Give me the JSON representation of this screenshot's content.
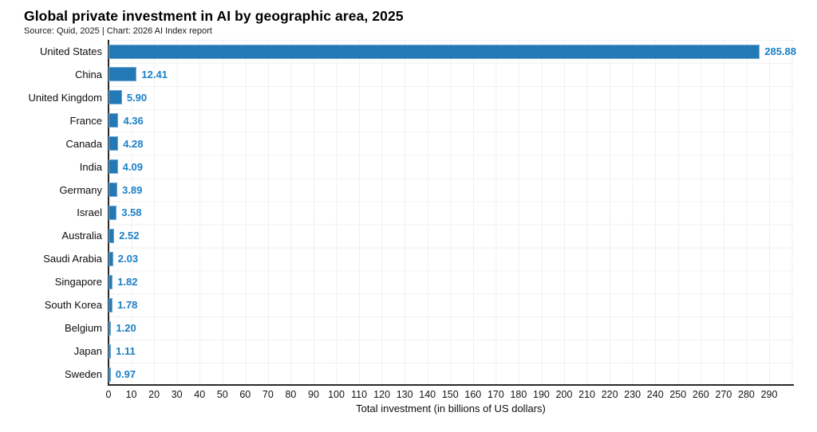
{
  "header": {
    "title": "Global private investment in AI by geographic area, 2025",
    "source_line": "Source: Quid, 2025 | Chart: 2026 AI Index report"
  },
  "chart_data": {
    "type": "bar",
    "orientation": "horizontal",
    "title": "Global private investment in AI by geographic area, 2025",
    "subtitle": "Source: Quid, 2025 | Chart: 2026 AI Index report",
    "categories": [
      "United States",
      "China",
      "United Kingdom",
      "France",
      "Canada",
      "India",
      "Germany",
      "Israel",
      "Australia",
      "Saudi Arabia",
      "Singapore",
      "South Korea",
      "Belgium",
      "Japan",
      "Sweden"
    ],
    "values": [
      285.88,
      12.41,
      5.9,
      4.36,
      4.28,
      4.09,
      3.89,
      3.58,
      2.52,
      2.03,
      1.82,
      1.78,
      1.2,
      1.11,
      0.97
    ],
    "value_labels": [
      "285.88",
      "12.41",
      "5.90",
      "4.36",
      "4.28",
      "4.09",
      "3.89",
      "3.58",
      "2.52",
      "2.03",
      "1.82",
      "1.78",
      "1.20",
      "1.11",
      "0.97"
    ],
    "xlabel": "Total investment (in billions of US dollars)",
    "xlim": [
      0,
      300
    ],
    "xticks": [
      0,
      10,
      20,
      30,
      40,
      50,
      60,
      70,
      80,
      90,
      100,
      110,
      120,
      130,
      140,
      150,
      160,
      170,
      180,
      190,
      200,
      210,
      220,
      230,
      240,
      250,
      260,
      270,
      280,
      290
    ],
    "grid": true,
    "legend": "none",
    "colors": {
      "bar_fill": "#2379B6",
      "bar_edge": "#6FA7D2",
      "value_label": "#1B7FC6",
      "axis": "#2a2a2a",
      "gridline": "#f0f0f3"
    }
  }
}
